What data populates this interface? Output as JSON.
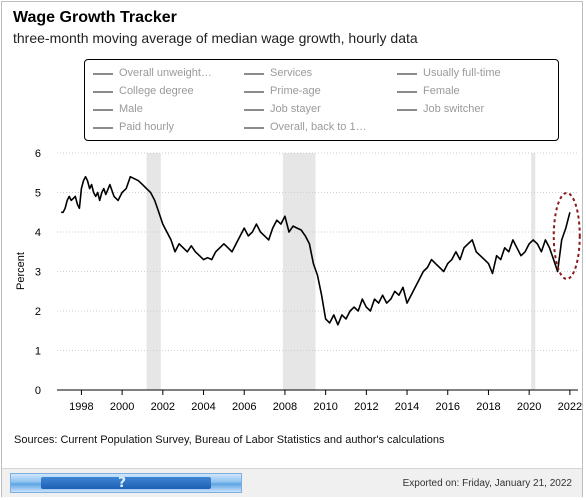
{
  "header": {
    "title": "Wage Growth Tracker",
    "subtitle": "three-month moving average of median wage growth, hourly data"
  },
  "legend": {
    "items": [
      {
        "label": "Overall unweight…",
        "active": true
      },
      {
        "label": "Services",
        "active": false
      },
      {
        "label": "Usually full-time",
        "active": false
      },
      {
        "label": "College degree",
        "active": false
      },
      {
        "label": "Prime-age",
        "active": false
      },
      {
        "label": "Female",
        "active": false
      },
      {
        "label": "Male",
        "active": false
      },
      {
        "label": "Job stayer",
        "active": false
      },
      {
        "label": "Job switcher",
        "active": false
      },
      {
        "label": "Paid hourly",
        "active": false
      },
      {
        "label": "Overall, back to 1…",
        "active": false
      }
    ]
  },
  "chart_data": {
    "type": "line",
    "ylabel": "Percent",
    "xlabel": "",
    "ylim": [
      0,
      6
    ],
    "xlim": [
      1996.8,
      2022.4
    ],
    "yticks": [
      0,
      1,
      2,
      3,
      4,
      5,
      6
    ],
    "xticks": [
      1998,
      2000,
      2002,
      2004,
      2006,
      2008,
      2010,
      2012,
      2014,
      2016,
      2018,
      2020,
      2022
    ],
    "grid": "horizontal",
    "line_color": "#000000",
    "recession_color": "#e6e6e6",
    "recessions": [
      [
        2001.2,
        2001.9
      ],
      [
        2007.9,
        2009.5
      ],
      [
        2020.1,
        2020.3
      ]
    ],
    "annotation": {
      "type": "dashed-ellipse",
      "color": "#8b1a1a",
      "center": [
        2021.7,
        3.9
      ]
    },
    "series": [
      {
        "name": "Overall unweight…",
        "x": [
          1997.0,
          1997.1,
          1997.2,
          1997.3,
          1997.4,
          1997.5,
          1997.6,
          1997.7,
          1997.8,
          1997.9,
          1998.0,
          1998.1,
          1998.2,
          1998.3,
          1998.4,
          1998.5,
          1998.6,
          1998.7,
          1998.8,
          1998.9,
          1999.0,
          1999.1,
          1999.2,
          1999.4,
          1999.6,
          1999.8,
          2000.0,
          2000.2,
          2000.4,
          2000.6,
          2000.8,
          2001.0,
          2001.2,
          2001.4,
          2001.6,
          2001.8,
          2002.0,
          2002.2,
          2002.4,
          2002.6,
          2002.8,
          2003.0,
          2003.2,
          2003.4,
          2003.6,
          2003.8,
          2004.0,
          2004.2,
          2004.4,
          2004.6,
          2004.8,
          2005.0,
          2005.2,
          2005.4,
          2005.6,
          2005.8,
          2006.0,
          2006.2,
          2006.4,
          2006.6,
          2006.8,
          2007.0,
          2007.2,
          2007.4,
          2007.6,
          2007.8,
          2008.0,
          2008.2,
          2008.4,
          2008.6,
          2008.8,
          2009.0,
          2009.2,
          2009.4,
          2009.6,
          2009.8,
          2010.0,
          2010.2,
          2010.4,
          2010.6,
          2010.8,
          2011.0,
          2011.2,
          2011.4,
          2011.6,
          2011.8,
          2012.0,
          2012.2,
          2012.4,
          2012.6,
          2012.8,
          2013.0,
          2013.2,
          2013.4,
          2013.6,
          2013.8,
          2014.0,
          2014.2,
          2014.4,
          2014.6,
          2014.8,
          2015.0,
          2015.2,
          2015.4,
          2015.6,
          2015.8,
          2016.0,
          2016.2,
          2016.4,
          2016.6,
          2016.8,
          2017.0,
          2017.2,
          2017.4,
          2017.6,
          2017.8,
          2018.0,
          2018.2,
          2018.4,
          2018.6,
          2018.8,
          2019.0,
          2019.2,
          2019.4,
          2019.6,
          2019.8,
          2020.0,
          2020.2,
          2020.4,
          2020.6,
          2020.8,
          2021.0,
          2021.2,
          2021.4,
          2021.6,
          2021.8,
          2022.0
        ],
        "values": [
          4.5,
          4.5,
          4.6,
          4.8,
          4.9,
          4.8,
          4.85,
          4.9,
          4.7,
          4.6,
          5.1,
          5.3,
          5.4,
          5.3,
          5.1,
          5.2,
          5.0,
          4.9,
          5.0,
          4.8,
          5.0,
          5.1,
          4.95,
          5.2,
          4.9,
          4.8,
          5.0,
          5.1,
          5.4,
          5.35,
          5.3,
          5.2,
          5.1,
          5.0,
          4.8,
          4.5,
          4.2,
          4.0,
          3.8,
          3.5,
          3.7,
          3.6,
          3.5,
          3.65,
          3.5,
          3.4,
          3.3,
          3.35,
          3.3,
          3.5,
          3.6,
          3.7,
          3.6,
          3.5,
          3.7,
          3.9,
          4.1,
          3.9,
          4.0,
          4.2,
          4.0,
          3.9,
          3.8,
          4.1,
          4.3,
          4.2,
          4.4,
          4.0,
          4.15,
          4.1,
          4.05,
          3.9,
          3.7,
          3.2,
          2.9,
          2.4,
          1.8,
          1.7,
          1.9,
          1.65,
          1.9,
          1.8,
          2.0,
          2.1,
          2.0,
          2.3,
          2.1,
          2.0,
          2.3,
          2.2,
          2.4,
          2.2,
          2.3,
          2.5,
          2.4,
          2.6,
          2.2,
          2.4,
          2.6,
          2.8,
          3.0,
          3.1,
          3.3,
          3.2,
          3.1,
          3.0,
          3.2,
          3.3,
          3.5,
          3.3,
          3.6,
          3.7,
          3.8,
          3.5,
          3.4,
          3.3,
          3.2,
          2.95,
          3.4,
          3.3,
          3.6,
          3.5,
          3.8,
          3.6,
          3.4,
          3.5,
          3.7,
          3.8,
          3.7,
          3.5,
          3.8,
          3.6,
          3.3,
          3.0,
          3.8,
          4.1,
          4.5
        ]
      }
    ]
  },
  "sources": "Sources: Current Population Survey, Bureau of Labor Statistics and author's calculations",
  "footer": {
    "exported": "Exported on: Friday, January 21, 2022",
    "logo_glyph": "?"
  }
}
